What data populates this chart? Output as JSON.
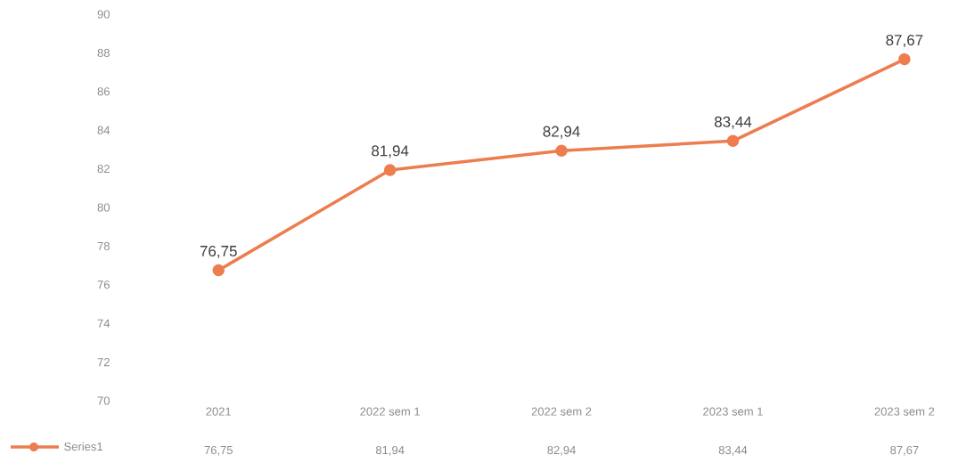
{
  "chart_data": {
    "type": "line",
    "categories": [
      "2021",
      "2022 sem 1",
      "2022 sem 2",
      "2023 sem 1",
      "2023 sem 2"
    ],
    "series": [
      {
        "name": "Series1",
        "color": "#ed7d4f",
        "values": [
          76.75,
          81.94,
          82.94,
          83.44,
          87.67
        ],
        "value_labels": [
          "76,75",
          "81,94",
          "82,94",
          "83,44",
          "87,67"
        ]
      }
    ],
    "ylim": [
      70,
      90
    ],
    "yticks": [
      70,
      72,
      74,
      76,
      78,
      80,
      82,
      84,
      86,
      88,
      90
    ],
    "grid": false,
    "legend": "bottom",
    "marker": "circle",
    "line_style": "solid"
  }
}
